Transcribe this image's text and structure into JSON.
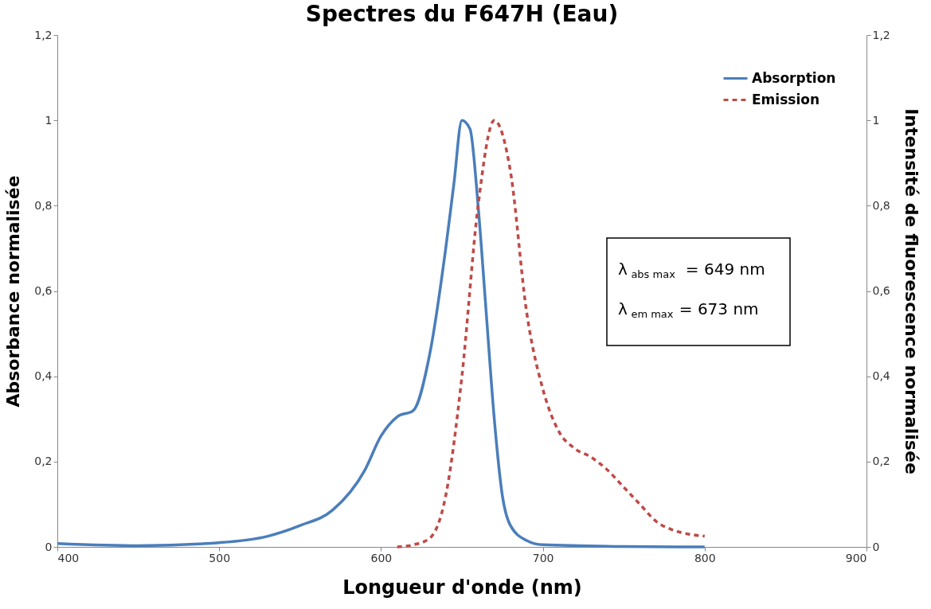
{
  "chart_data": {
    "type": "line",
    "title": "Spectres du F647H (Eau)",
    "xlabel": "Longueur d'onde (nm)",
    "ylabel": "Absorbance normalisée",
    "y2label": "Intensité de fluorescence normalisée",
    "xlim": [
      400,
      900
    ],
    "xticks": [
      400,
      500,
      600,
      700,
      800,
      900
    ],
    "ylim": [
      0,
      1.2
    ],
    "yticks": [
      0,
      {
        "value": 0.2,
        "label": "0,2"
      },
      {
        "value": 0.4,
        "label": "0,4"
      },
      {
        "value": 0.6,
        "label": "0,6"
      },
      {
        "value": 0.8,
        "label": "0,8"
      },
      1,
      {
        "value": 1.2,
        "label": "1,2"
      }
    ],
    "y2lim": [
      0,
      1.2
    ],
    "y2ticks": [
      0,
      {
        "value": 0.2,
        "label": "0,2"
      },
      {
        "value": 0.4,
        "label": "0,4"
      },
      {
        "value": 0.6,
        "label": "0,6"
      },
      {
        "value": 0.8,
        "label": "0,8"
      },
      1,
      {
        "value": 1.2,
        "label": "1,2"
      }
    ],
    "grid": false,
    "legend": "top right",
    "annotations": [
      "λ$_{abs max}$ = 649 nm",
      "λ$_{em max}$ = 673 nm"
    ],
    "series": [
      {
        "name": "Absorption",
        "color": "#4a7ebb",
        "line_style": "solid",
        "x": [
          400,
          450,
          500,
          530,
          550,
          570,
          590,
          600,
          610,
          620,
          630,
          640,
          645,
          650,
          655,
          660,
          665,
          670,
          675,
          680,
          690,
          700,
          750,
          800
        ],
        "values": [
          0.008,
          0.003,
          0.01,
          0.025,
          0.05,
          0.086,
          0.18,
          0.26,
          0.305,
          0.32,
          0.45,
          0.7,
          0.85,
          1.0,
          0.98,
          0.8,
          0.55,
          0.3,
          0.12,
          0.05,
          0.015,
          0.005,
          0.001,
          0
        ]
      },
      {
        "name": "Emission",
        "color": "#be4b48",
        "line_style": "dashed",
        "axis": "y2",
        "x": [
          610,
          620,
          630,
          640,
          650,
          660,
          670,
          680,
          690,
          700,
          710,
          720,
          730,
          740,
          750,
          760,
          770,
          780,
          790,
          800
        ],
        "values": [
          0,
          0.005,
          0.02,
          0.12,
          0.4,
          0.8,
          1.0,
          0.88,
          0.55,
          0.37,
          0.27,
          0.23,
          0.21,
          0.18,
          0.14,
          0.1,
          0.06,
          0.04,
          0.03,
          0.025
        ]
      }
    ]
  }
}
